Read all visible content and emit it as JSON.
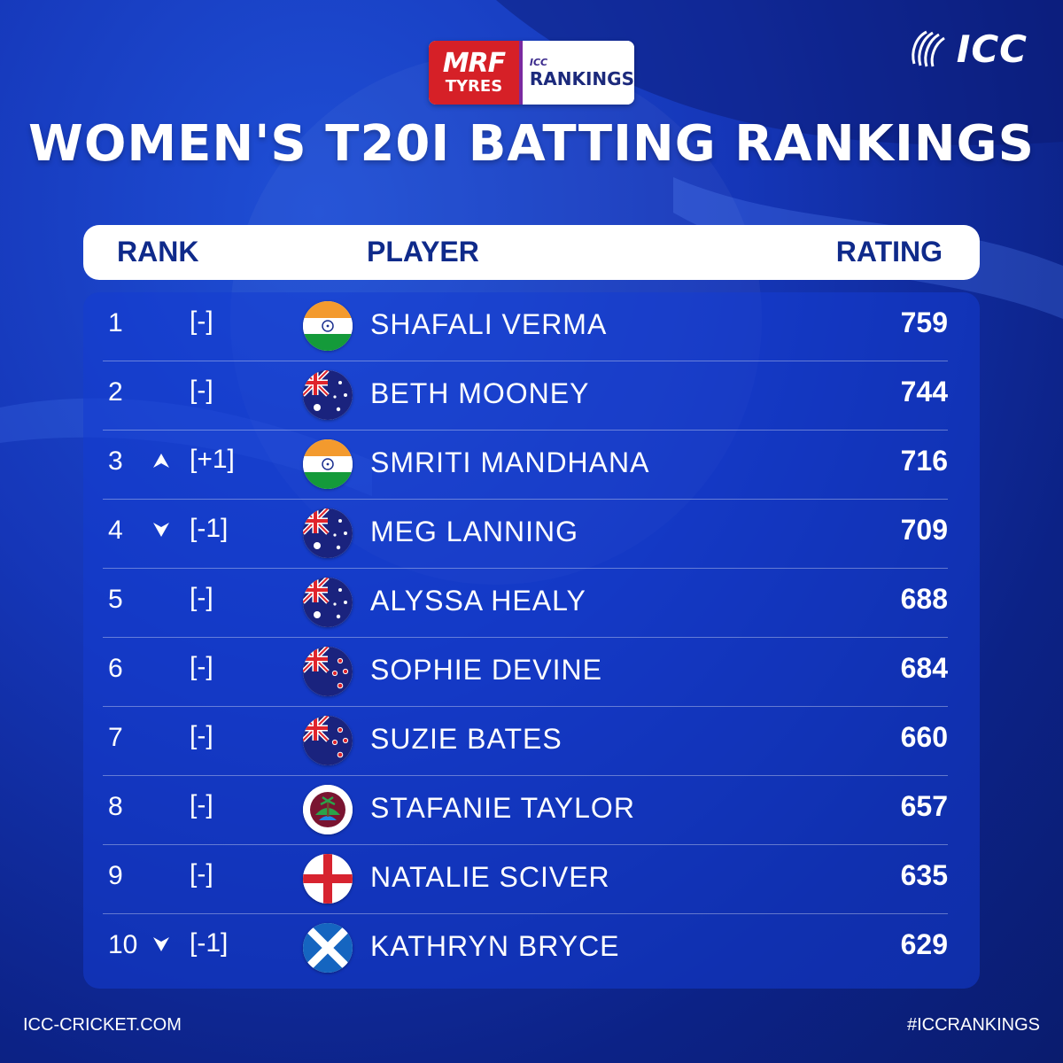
{
  "brand": {
    "icc_logo_text": "ICC",
    "sponsor_mrf_line1": "MRF",
    "sponsor_mrf_line2": "TYRES",
    "sponsor_icc_small": "ICC",
    "sponsor_rankings": "RANKINGS"
  },
  "title": "WOMEN'S T20I BATTING RANKINGS",
  "columns": {
    "rank": "RANK",
    "player": "PLAYER",
    "rating": "RATING"
  },
  "rows": [
    {
      "rank": "1",
      "move": "[-]",
      "arrow": "none",
      "flag": "india",
      "name": "SHAFALI VERMA",
      "rating": "759"
    },
    {
      "rank": "2",
      "move": "[-]",
      "arrow": "none",
      "flag": "australia",
      "name": "BETH MOONEY",
      "rating": "744"
    },
    {
      "rank": "3",
      "move": "[+1]",
      "arrow": "up",
      "flag": "india",
      "name": "SMRITI MANDHANA",
      "rating": "716"
    },
    {
      "rank": "4",
      "move": "[-1]",
      "arrow": "down",
      "flag": "australia",
      "name": "MEG LANNING",
      "rating": "709"
    },
    {
      "rank": "5",
      "move": "[-]",
      "arrow": "none",
      "flag": "australia",
      "name": "ALYSSA HEALY",
      "rating": "688"
    },
    {
      "rank": "6",
      "move": "[-]",
      "arrow": "none",
      "flag": "new-zealand",
      "name": "SOPHIE DEVINE",
      "rating": "684"
    },
    {
      "rank": "7",
      "move": "[-]",
      "arrow": "none",
      "flag": "new-zealand",
      "name": "SUZIE BATES",
      "rating": "660"
    },
    {
      "rank": "8",
      "move": "[-]",
      "arrow": "none",
      "flag": "west-indies",
      "name": "STAFANIE TAYLOR",
      "rating": "657"
    },
    {
      "rank": "9",
      "move": "[-]",
      "arrow": "none",
      "flag": "england",
      "name": "NATALIE SCIVER",
      "rating": "635"
    },
    {
      "rank": "10",
      "move": "[-1]",
      "arrow": "down",
      "flag": "scotland",
      "name": "KATHRYN BRYCE",
      "rating": "629"
    }
  ],
  "footer": {
    "left": "ICC-CRICKET.COM",
    "right": "#ICCRANKINGS"
  },
  "colors": {
    "background": "#1536b8",
    "header_text": "#0f2a8a",
    "panel": "#143cd2"
  }
}
